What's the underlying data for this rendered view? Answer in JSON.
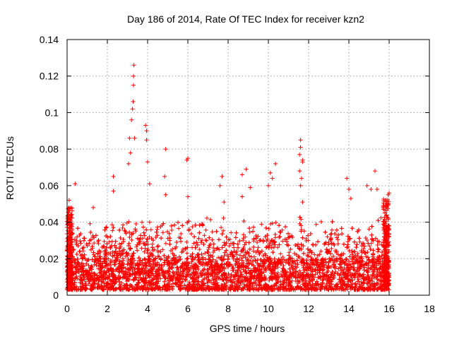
{
  "chart_data": {
    "type": "scatter",
    "title": "Day 186 of 2014, Rate Of TEC Index for receiver kzn2",
    "xlabel": "GPS time / hours",
    "ylabel": "ROTI / TECUs",
    "xlim": [
      0,
      18
    ],
    "ylim": [
      0,
      0.14
    ],
    "x_ticks": [
      0,
      2,
      4,
      6,
      8,
      10,
      12,
      14,
      16,
      18
    ],
    "x_tick_labels": [
      "0",
      "2",
      "4",
      "6",
      "8",
      "10",
      "12",
      "14",
      "16",
      "18"
    ],
    "y_ticks": [
      0,
      0.02,
      0.04,
      0.06,
      0.08,
      0.1,
      0.12,
      0.14
    ],
    "y_tick_labels": [
      "0",
      "0.02",
      "0.04",
      "0.06",
      "0.08",
      "0.1",
      "0.12",
      "0.14"
    ],
    "grid": true,
    "marker": "+",
    "color": "#ff0000",
    "x_data_range": [
      0,
      16
    ],
    "bulk_band": [
      0.003,
      0.045
    ],
    "peaks": [
      {
        "x": 0.1,
        "y": 0.052
      },
      {
        "x": 0.4,
        "y": 0.061
      },
      {
        "x": 1.3,
        "y": 0.048
      },
      {
        "x": 2.3,
        "y": 0.065
      },
      {
        "x": 2.3,
        "y": 0.057
      },
      {
        "x": 3.1,
        "y": 0.086
      },
      {
        "x": 3.15,
        "y": 0.078
      },
      {
        "x": 3.2,
        "y": 0.096
      },
      {
        "x": 3.25,
        "y": 0.102
      },
      {
        "x": 3.28,
        "y": 0.106
      },
      {
        "x": 3.3,
        "y": 0.115
      },
      {
        "x": 3.3,
        "y": 0.12
      },
      {
        "x": 3.32,
        "y": 0.126
      },
      {
        "x": 3.05,
        "y": 0.072
      },
      {
        "x": 3.35,
        "y": 0.086
      },
      {
        "x": 3.9,
        "y": 0.093
      },
      {
        "x": 3.95,
        "y": 0.09
      },
      {
        "x": 3.95,
        "y": 0.085
      },
      {
        "x": 4.0,
        "y": 0.073
      },
      {
        "x": 4.1,
        "y": 0.061
      },
      {
        "x": 4.9,
        "y": 0.08
      },
      {
        "x": 4.85,
        "y": 0.065
      },
      {
        "x": 4.9,
        "y": 0.055
      },
      {
        "x": 6.0,
        "y": 0.075
      },
      {
        "x": 5.95,
        "y": 0.074
      },
      {
        "x": 6.0,
        "y": 0.054
      },
      {
        "x": 7.7,
        "y": 0.065
      },
      {
        "x": 7.6,
        "y": 0.06
      },
      {
        "x": 7.8,
        "y": 0.051
      },
      {
        "x": 8.9,
        "y": 0.069
      },
      {
        "x": 8.7,
        "y": 0.066
      },
      {
        "x": 8.7,
        "y": 0.054
      },
      {
        "x": 9.1,
        "y": 0.059
      },
      {
        "x": 10.1,
        "y": 0.067
      },
      {
        "x": 10.35,
        "y": 0.072
      },
      {
        "x": 10.2,
        "y": 0.064
      },
      {
        "x": 10.0,
        "y": 0.06
      },
      {
        "x": 11.6,
        "y": 0.085
      },
      {
        "x": 11.6,
        "y": 0.081
      },
      {
        "x": 11.55,
        "y": 0.077
      },
      {
        "x": 11.7,
        "y": 0.074
      },
      {
        "x": 11.7,
        "y": 0.073
      },
      {
        "x": 11.55,
        "y": 0.068
      },
      {
        "x": 11.65,
        "y": 0.064
      },
      {
        "x": 11.6,
        "y": 0.06
      },
      {
        "x": 11.7,
        "y": 0.051
      },
      {
        "x": 13.9,
        "y": 0.064
      },
      {
        "x": 14.0,
        "y": 0.058
      },
      {
        "x": 14.1,
        "y": 0.053
      },
      {
        "x": 14.9,
        "y": 0.06
      },
      {
        "x": 15.1,
        "y": 0.058
      },
      {
        "x": 15.3,
        "y": 0.068
      },
      {
        "x": 15.4,
        "y": 0.058
      },
      {
        "x": 16.0,
        "y": 0.056
      },
      {
        "x": 15.95,
        "y": 0.055
      }
    ]
  }
}
